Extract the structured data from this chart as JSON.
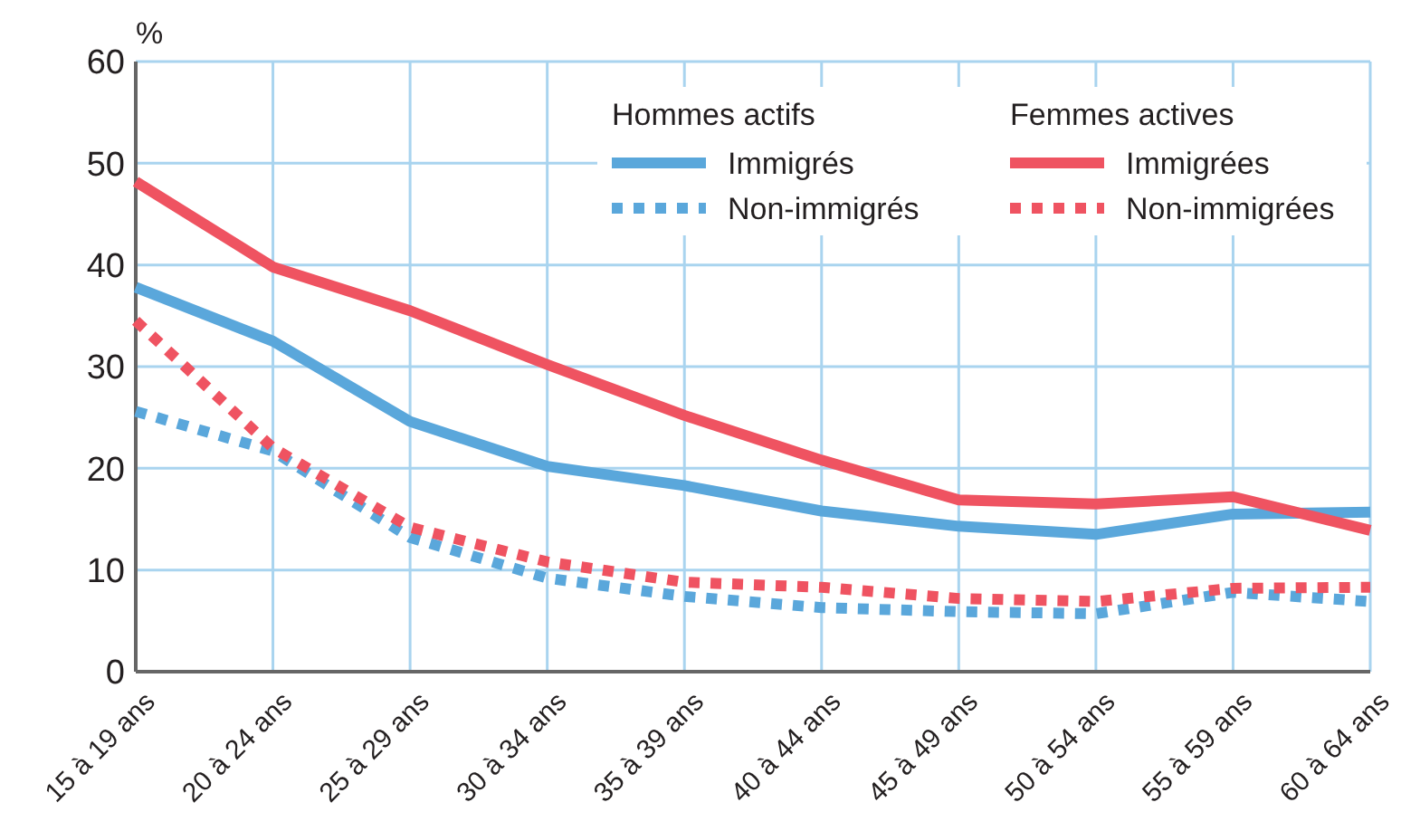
{
  "chart_data": {
    "type": "line",
    "ylabel": "%",
    "categories": [
      "15 à 19 ans",
      "20 à 24 ans",
      "25 à 29 ans",
      "30 à 34 ans",
      "35 à 39 ans",
      "40 à 44 ans",
      "45 à 49 ans",
      "50 à 54 ans",
      "55 à 59 ans",
      "60 à 64 ans"
    ],
    "series": [
      {
        "name": "Immigrés",
        "color": "#5aa7db",
        "line_style": "solid",
        "values": [
          37.8,
          32.5,
          24.6,
          20.2,
          18.3,
          15.8,
          14.3,
          13.5,
          15.5,
          15.7
        ]
      },
      {
        "name": "Non-immigrés",
        "color": "#5aa7db",
        "line_style": "dotted",
        "values": [
          25.6,
          21.7,
          13.2,
          9.2,
          7.4,
          6.3,
          5.9,
          5.7,
          7.8,
          6.9
        ]
      },
      {
        "name": "Immigrées",
        "color": "#ef5361",
        "line_style": "solid",
        "values": [
          48.2,
          39.8,
          35.5,
          30.2,
          25.2,
          20.8,
          16.9,
          16.5,
          17.2,
          13.9
        ]
      },
      {
        "name": "Non-immigrées",
        "color": "#ef5361",
        "line_style": "dotted",
        "values": [
          34.5,
          22.0,
          14.2,
          10.8,
          8.8,
          8.3,
          7.2,
          6.9,
          8.2,
          8.3
        ]
      }
    ],
    "annotations": [
      "Hommes actifs",
      "Femmes actives"
    ],
    "ylim": [
      0,
      60
    ],
    "yticks": [
      0,
      10,
      20,
      30,
      40,
      50,
      60
    ],
    "grid": true,
    "legend": "top right"
  }
}
